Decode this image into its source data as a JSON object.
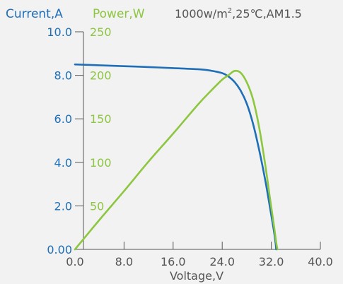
{
  "chart_data": {
    "type": "line",
    "header": {
      "current_label": "Current,A",
      "power_label": "Power,W",
      "conditions_prefix": "1000w/m",
      "conditions_sup": "2",
      "conditions_suffix": ",25℃,AM1.5"
    },
    "xlabel": "Voltage,V",
    "xlim": [
      0,
      40
    ],
    "x_ticks": [
      {
        "value": 0,
        "label": "0.0"
      },
      {
        "value": 8,
        "label": "8.0"
      },
      {
        "value": 16,
        "label": "16.0"
      },
      {
        "value": 24,
        "label": "24.0"
      },
      {
        "value": 32,
        "label": "32.0"
      },
      {
        "value": 40,
        "label": "40.0"
      }
    ],
    "y_left": {
      "label": "Current,A",
      "lim": [
        0,
        10
      ],
      "ticks": [
        {
          "value": 0,
          "label": "0.00"
        },
        {
          "value": 2,
          "label": "2.0"
        },
        {
          "value": 4,
          "label": "4.0"
        },
        {
          "value": 6,
          "label": "6.0"
        },
        {
          "value": 8,
          "label": "8.0"
        },
        {
          "value": 10,
          "label": "10.0"
        }
      ]
    },
    "y_right": {
      "label": "Power,W",
      "lim": [
        0,
        250
      ],
      "ticks": [
        {
          "value": 50,
          "label": "50"
        },
        {
          "value": 100,
          "label": "100"
        },
        {
          "value": 150,
          "label": "150"
        },
        {
          "value": 200,
          "label": "200"
        },
        {
          "value": 250,
          "label": "250"
        }
      ]
    },
    "series": [
      {
        "name": "Current,A",
        "axis": "left",
        "color": "#1e6fb8",
        "points": [
          [
            0,
            8.5
          ],
          [
            4,
            8.46
          ],
          [
            8,
            8.42
          ],
          [
            12,
            8.38
          ],
          [
            16,
            8.33
          ],
          [
            20,
            8.28
          ],
          [
            22,
            8.22
          ],
          [
            24,
            8.1
          ],
          [
            25,
            7.95
          ],
          [
            26,
            7.7
          ],
          [
            27,
            7.3
          ],
          [
            28,
            6.7
          ],
          [
            29,
            5.8
          ],
          [
            30,
            4.6
          ],
          [
            31,
            3.2
          ],
          [
            31.8,
            1.9
          ],
          [
            32.4,
            0.9
          ],
          [
            32.7,
            0.3
          ],
          [
            32.8,
            0
          ]
        ]
      },
      {
        "name": "Power,W",
        "axis": "right",
        "color": "#8dc63f",
        "points": [
          [
            0,
            0
          ],
          [
            4,
            34
          ],
          [
            8,
            67
          ],
          [
            12,
            101
          ],
          [
            16,
            133
          ],
          [
            20,
            166
          ],
          [
            22,
            181
          ],
          [
            24,
            195
          ],
          [
            25,
            200
          ],
          [
            26,
            205
          ],
          [
            27,
            203
          ],
          [
            28,
            192
          ],
          [
            29,
            173
          ],
          [
            30,
            141
          ],
          [
            31,
            98
          ],
          [
            31.8,
            58
          ],
          [
            32.4,
            29
          ],
          [
            32.8,
            8
          ],
          [
            33,
            0
          ]
        ]
      }
    ]
  }
}
